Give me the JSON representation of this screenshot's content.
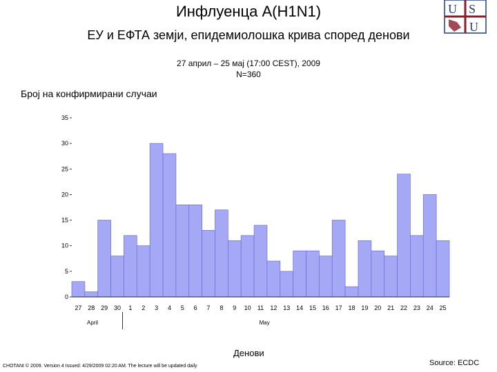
{
  "header": {
    "title": "Инфлуенца А(H1N1)",
    "subtitle": "ЕУ и ЕФТА земји, епидемиолошка крива според денови",
    "period_line1": "27 април – 25 мај (17:00 CEST), 2009",
    "period_line2": "N=360"
  },
  "logo": {
    "letters": "USU"
  },
  "footer": {
    "left": "CHOTANI © 2009. Version 4 Issued: 4/29/2009 02:20 AM. The lecture will be updated daily",
    "right": "Source: ECDC"
  },
  "colors": {
    "bar_fill": "#a5a8f5",
    "bar_stroke": "#6b6ecf",
    "logo_blue": "#1f3e7a",
    "logo_red": "#8b1c2c"
  },
  "chart_data": {
    "type": "bar",
    "ylabel": "Број на конфирмирани случаи",
    "xlabel": "Денови",
    "ylim": [
      0,
      35
    ],
    "yticks": [
      0,
      5,
      10,
      15,
      20,
      25,
      30,
      35
    ],
    "grid": false,
    "categories": [
      "27",
      "28",
      "29",
      "30",
      "1",
      "2",
      "3",
      "4",
      "5",
      "6",
      "7",
      "8",
      "9",
      "10",
      "11",
      "12",
      "13",
      "14",
      "15",
      "16",
      "17",
      "18",
      "19",
      "20",
      "21",
      "22",
      "23",
      "24",
      "25"
    ],
    "values": [
      3,
      1,
      15,
      8,
      12,
      10,
      30,
      28,
      18,
      18,
      13,
      17,
      11,
      12,
      14,
      7,
      5,
      9,
      9,
      8,
      15,
      2,
      11,
      9,
      8,
      24,
      12,
      20,
      11
    ],
    "month_labels": [
      {
        "label": "April",
        "start_index": 0,
        "end_index": 3
      },
      {
        "label": "May",
        "start_index": 4,
        "end_index": 28
      }
    ]
  }
}
